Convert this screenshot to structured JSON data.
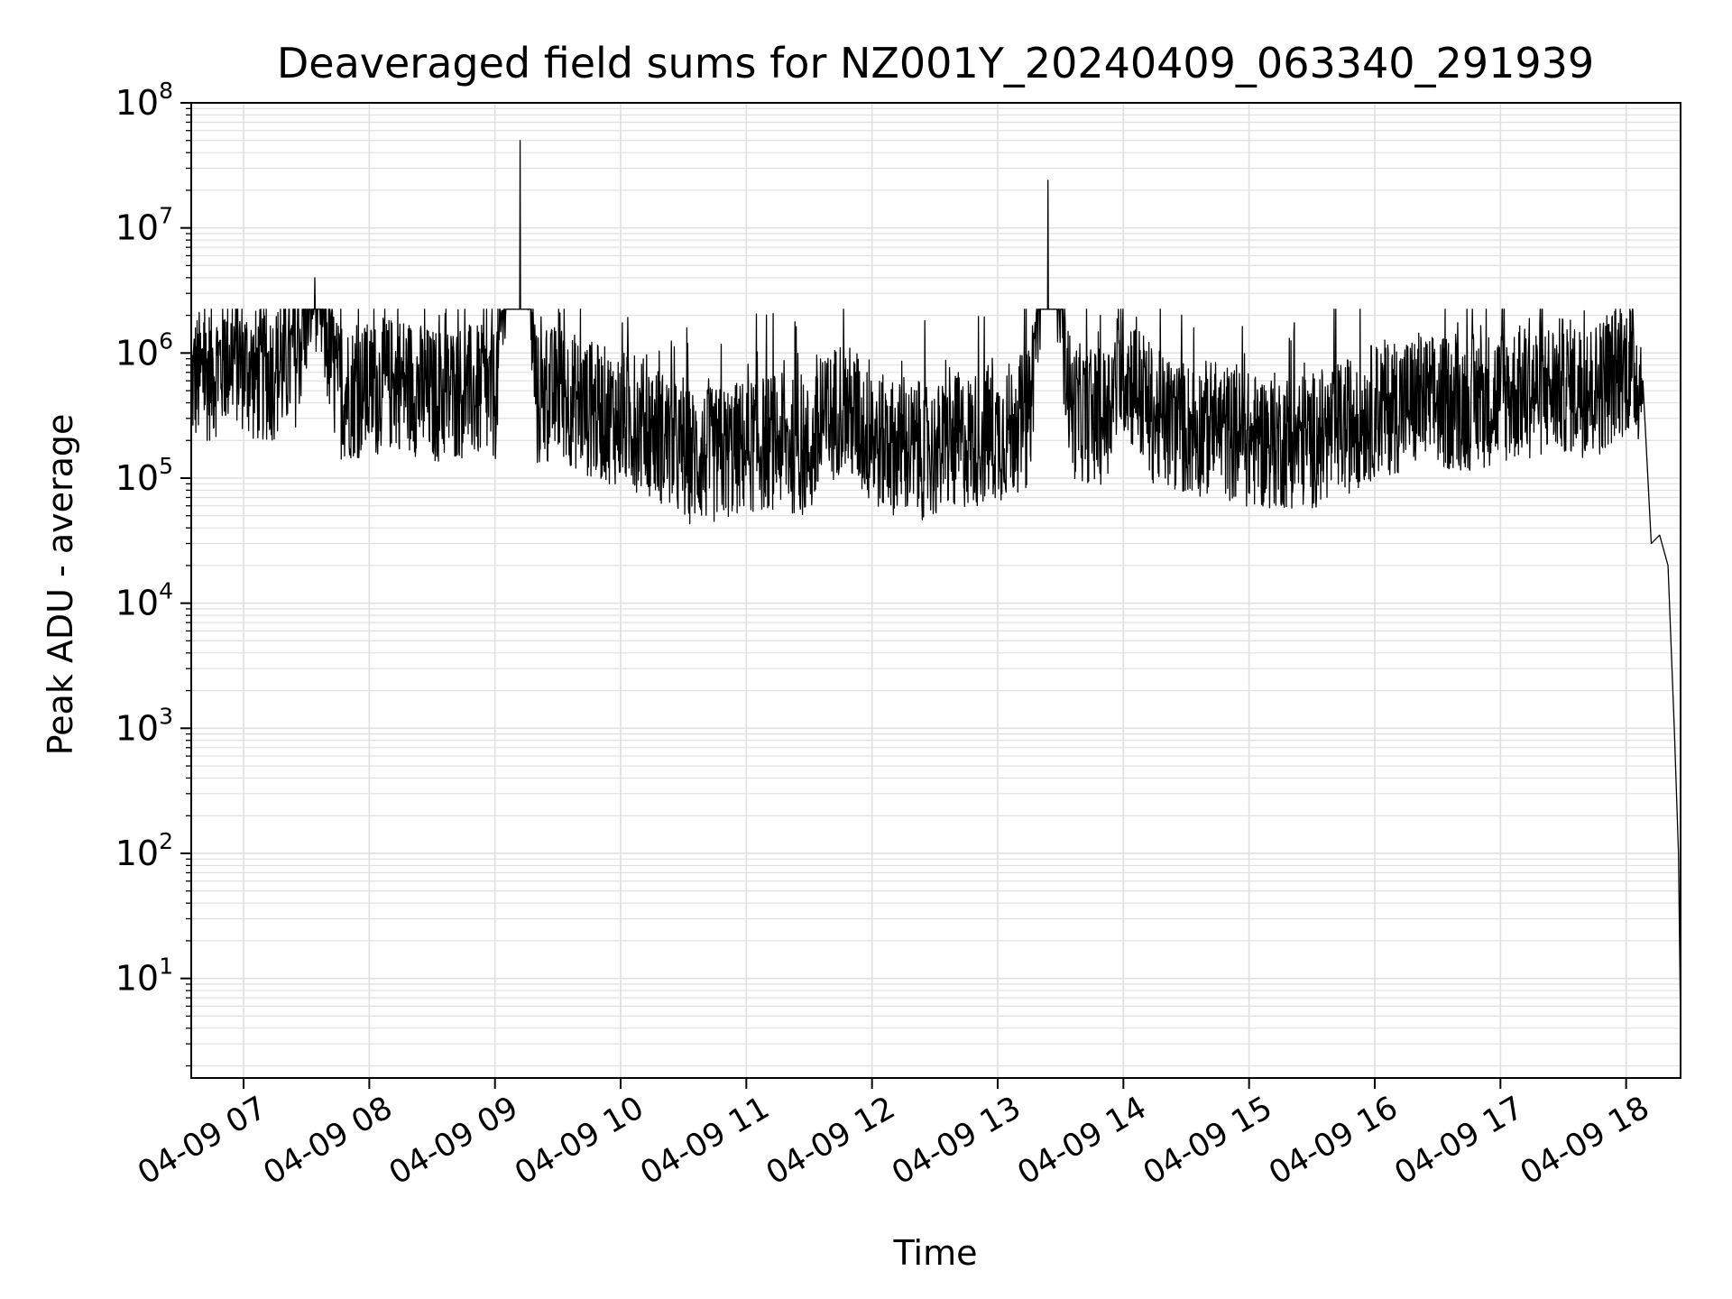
{
  "chart_data": {
    "type": "line",
    "title": "Deaveraged field sums for NZ001Y_20240409_063340_291939",
    "xlabel": "Time",
    "ylabel": "Peak ADU - average",
    "yscale": "log",
    "ylim": [
      1.6,
      100000000
    ],
    "xlim": [
      "2024-04-09 06:35",
      "2024-04-09 18:26"
    ],
    "grid": true,
    "line_color": "#000000",
    "grid_color": "#e0e0e0",
    "yticks": [
      {
        "base": "10",
        "exp": "1",
        "value": 10
      },
      {
        "base": "10",
        "exp": "2",
        "value": 100
      },
      {
        "base": "10",
        "exp": "3",
        "value": 1000
      },
      {
        "base": "10",
        "exp": "4",
        "value": 10000
      },
      {
        "base": "10",
        "exp": "5",
        "value": 100000
      },
      {
        "base": "10",
        "exp": "6",
        "value": 1000000
      },
      {
        "base": "10",
        "exp": "7",
        "value": 10000000
      },
      {
        "base": "10",
        "exp": "8",
        "value": 100000000
      }
    ],
    "xticks": [
      {
        "label": "04-09 07",
        "time": "2024-04-09 07:00"
      },
      {
        "label": "04-09 08",
        "time": "2024-04-09 08:00"
      },
      {
        "label": "04-09 09",
        "time": "2024-04-09 09:00"
      },
      {
        "label": "04-09 10",
        "time": "2024-04-09 10:00"
      },
      {
        "label": "04-09 11",
        "time": "2024-04-09 11:00"
      },
      {
        "label": "04-09 12",
        "time": "2024-04-09 12:00"
      },
      {
        "label": "04-09 13",
        "time": "2024-04-09 13:00"
      },
      {
        "label": "04-09 14",
        "time": "2024-04-09 14:00"
      },
      {
        "label": "04-09 15",
        "time": "2024-04-09 15:00"
      },
      {
        "label": "04-09 16",
        "time": "2024-04-09 16:00"
      },
      {
        "label": "04-09 17",
        "time": "2024-04-09 17:00"
      },
      {
        "label": "04-09 18",
        "time": "2024-04-09 18:00"
      }
    ],
    "series": [
      {
        "x": [
          "2024-04-09 06:35",
          "2024-04-09 06:45",
          "2024-04-09 06:55",
          "2024-04-09 07:05",
          "2024-04-09 07:15",
          "2024-04-09 07:25",
          "2024-04-09 07:34",
          "2024-04-09 07:45",
          "2024-04-09 08:00",
          "2024-04-09 08:15",
          "2024-04-09 08:30",
          "2024-04-09 08:45",
          "2024-04-09 09:00",
          "2024-04-09 09:12",
          "2024-04-09 09:20",
          "2024-04-09 09:30",
          "2024-04-09 09:45",
          "2024-04-09 10:00",
          "2024-04-09 10:15",
          "2024-04-09 10:30",
          "2024-04-09 10:45",
          "2024-04-09 11:00",
          "2024-04-09 11:15",
          "2024-04-09 11:30",
          "2024-04-09 11:45",
          "2024-04-09 12:00",
          "2024-04-09 12:15",
          "2024-04-09 12:30",
          "2024-04-09 12:45",
          "2024-04-09 13:00",
          "2024-04-09 13:15",
          "2024-04-09 13:24",
          "2024-04-09 13:35",
          "2024-04-09 13:50",
          "2024-04-09 14:00",
          "2024-04-09 14:15",
          "2024-04-09 14:30",
          "2024-04-09 14:45",
          "2024-04-09 15:00",
          "2024-04-09 15:15",
          "2024-04-09 15:30",
          "2024-04-09 15:45",
          "2024-04-09 16:00",
          "2024-04-09 16:15",
          "2024-04-09 16:30",
          "2024-04-09 16:45",
          "2024-04-09 17:00",
          "2024-04-09 17:15",
          "2024-04-09 17:30",
          "2024-04-09 17:45",
          "2024-04-09 18:00",
          "2024-04-09 18:08",
          "2024-04-09 18:12",
          "2024-04-09 18:16",
          "2024-04-09 18:20",
          "2024-04-09 18:23",
          "2024-04-09 18:25",
          "2024-04-09 18:26"
        ],
        "y": [
          600000,
          700000,
          1000000,
          650000,
          700000,
          900000,
          4000000,
          500000,
          500000,
          600000,
          450000,
          500000,
          450000,
          50000000,
          400000,
          500000,
          350000,
          300000,
          250000,
          150000,
          150000,
          180000,
          200000,
          160000,
          400000,
          200000,
          170000,
          160000,
          200000,
          220000,
          300000,
          24000000,
          350000,
          300000,
          800000,
          300000,
          250000,
          250000,
          200000,
          200000,
          200000,
          250000,
          350000,
          400000,
          400000,
          400000,
          450000,
          500000,
          550000,
          500000,
          800000,
          600000,
          30000,
          35000,
          20000,
          1000,
          100,
          4
        ]
      }
    ]
  }
}
